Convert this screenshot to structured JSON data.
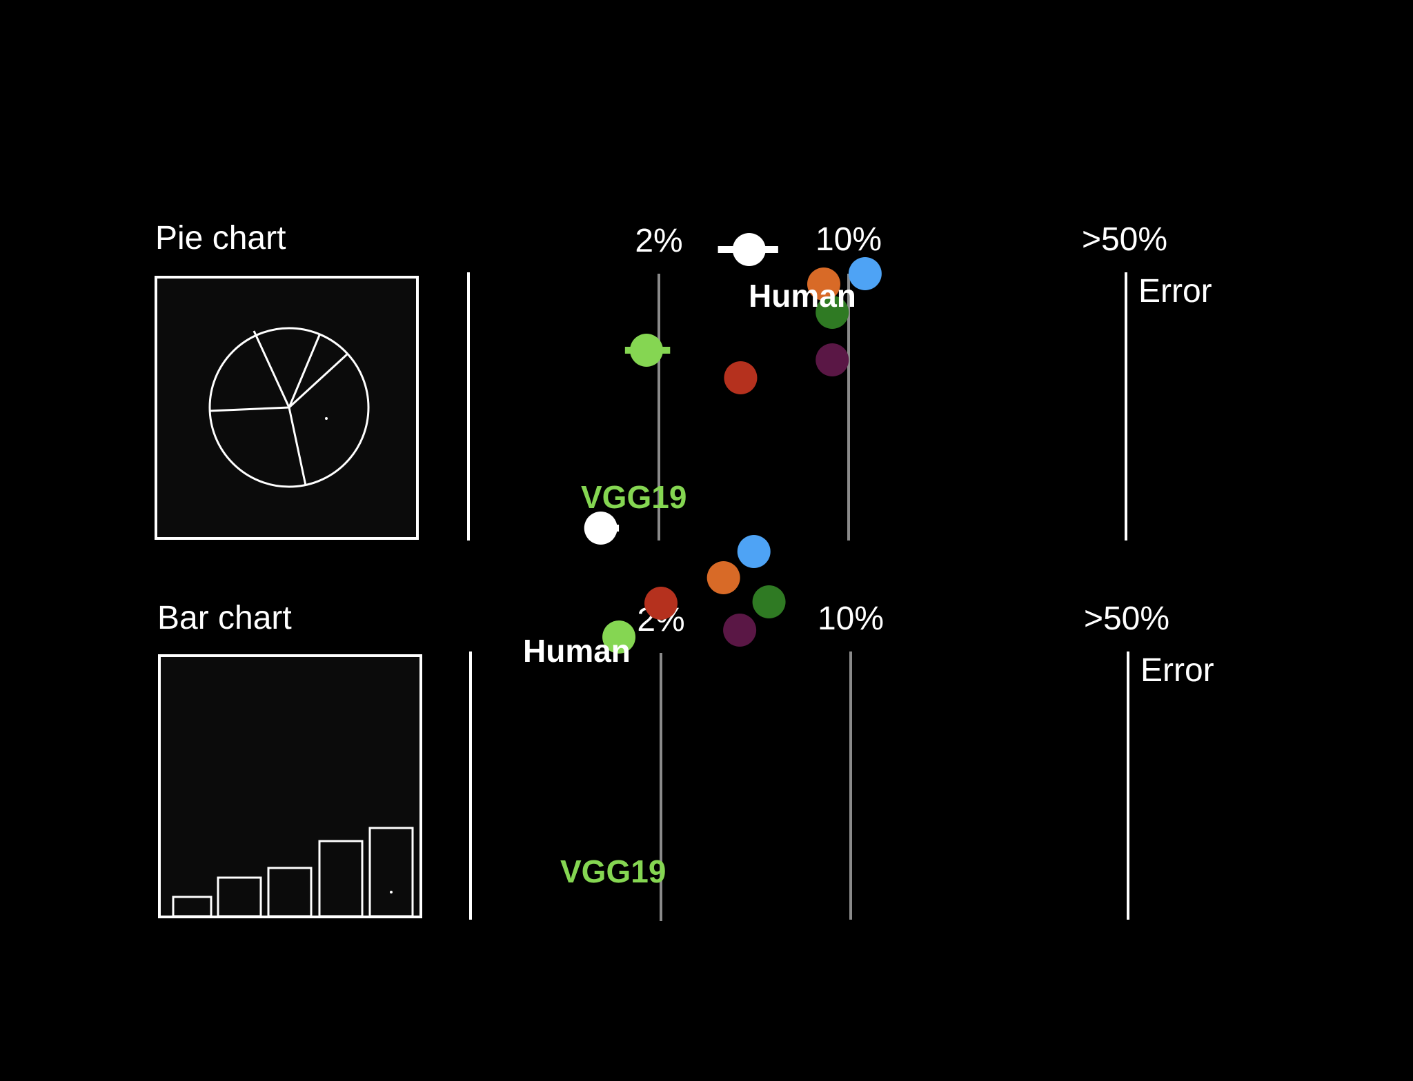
{
  "chart_data": [
    {
      "type": "scatter",
      "title": "Pie chart",
      "xlabel": "Error",
      "x_scale": "log",
      "tick_labels": [
        "2%",
        "10%",
        ">50%"
      ],
      "xlim": [
        1,
        50
      ],
      "series": [
        {
          "name": "Human",
          "color": "#ffffff",
          "x": 4.3,
          "error_bar": [
            3.3,
            5.5
          ],
          "labeled": true
        },
        {
          "color": "#4ea3f5",
          "x": 11.5
        },
        {
          "color": "#d86a27",
          "x": 8.1
        },
        {
          "color": "#2f7a23",
          "x": 8.7
        },
        {
          "color": "#5a1745",
          "x": 8.7
        },
        {
          "color": "#b5311e",
          "x": 4.0
        },
        {
          "name": "VGG19",
          "color": "#85d652",
          "x": 1.8,
          "error_bar": [
            1.5,
            2.2
          ],
          "labeled": true
        }
      ]
    },
    {
      "type": "scatter",
      "title": "Bar chart",
      "xlabel": "Error",
      "x_scale": "log",
      "tick_labels": [
        "2%",
        "10%",
        ">50%"
      ],
      "xlim": [
        1,
        50
      ],
      "series": [
        {
          "name": "Human",
          "color": "#ffffff",
          "x": 1.2,
          "error_bar": [
            1.05,
            1.4
          ],
          "labeled": true
        },
        {
          "color": "#4ea3f5",
          "x": 4.4
        },
        {
          "color": "#d86a27",
          "x": 3.4
        },
        {
          "color": "#b5311e",
          "x": 2.0
        },
        {
          "color": "#2f7a23",
          "x": 5.0
        },
        {
          "color": "#5a1745",
          "x": 3.9
        },
        {
          "name": "VGG19",
          "color": "#85d652",
          "x": 1.4,
          "labeled": true
        }
      ]
    }
  ]
}
